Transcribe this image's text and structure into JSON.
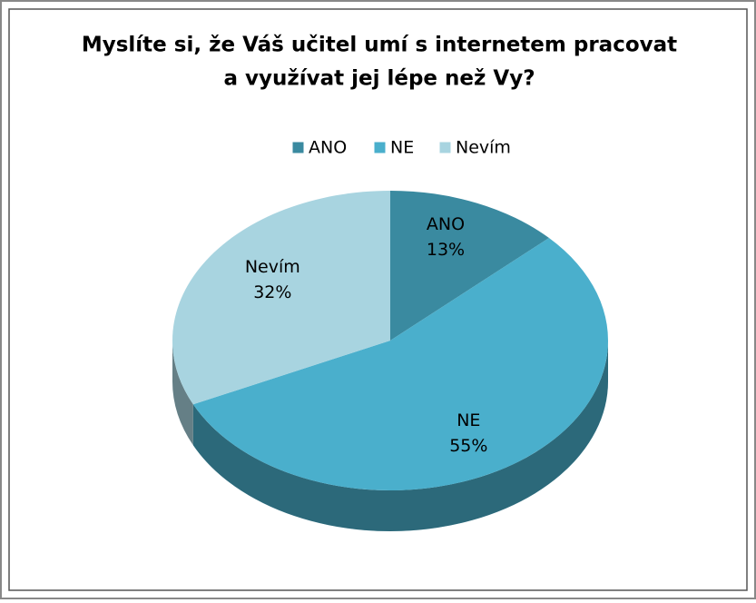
{
  "chart_data": {
    "type": "pie",
    "title": [
      "Myslíte si, že Váš učitel umí s internetem pracovat",
      "a využívat jej lépe než Vy?"
    ],
    "categories": [
      "ANO",
      "NE",
      "Nevím"
    ],
    "values": [
      13,
      55,
      32
    ],
    "value_labels": [
      "13%",
      "55%",
      "32%"
    ],
    "colors": [
      "#3a8aa0",
      "#4aafcc",
      "#a8d4e0"
    ],
    "legend": "top"
  }
}
